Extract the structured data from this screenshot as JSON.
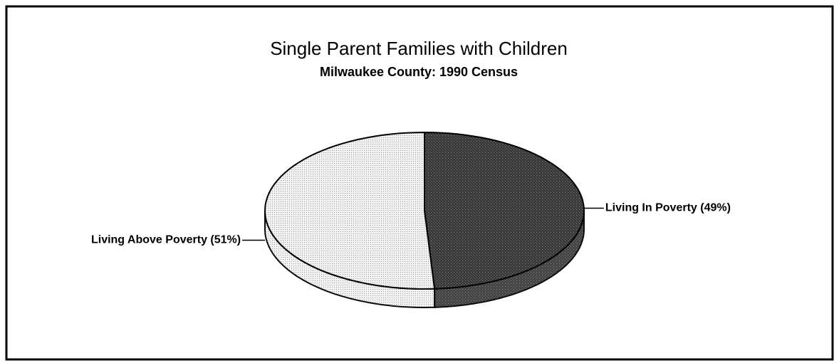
{
  "chart_data": {
    "type": "pie",
    "title": "Single Parent Families with Children",
    "subtitle": "Milwaukee County: 1990 Census",
    "categories": [
      "Living In Poverty",
      "Living Above Poverty"
    ],
    "values": [
      49,
      51
    ],
    "value_labels": [
      "(49%)",
      "(51%)"
    ],
    "colors": [
      "#3a3a3a",
      "#e4e4e4"
    ]
  }
}
